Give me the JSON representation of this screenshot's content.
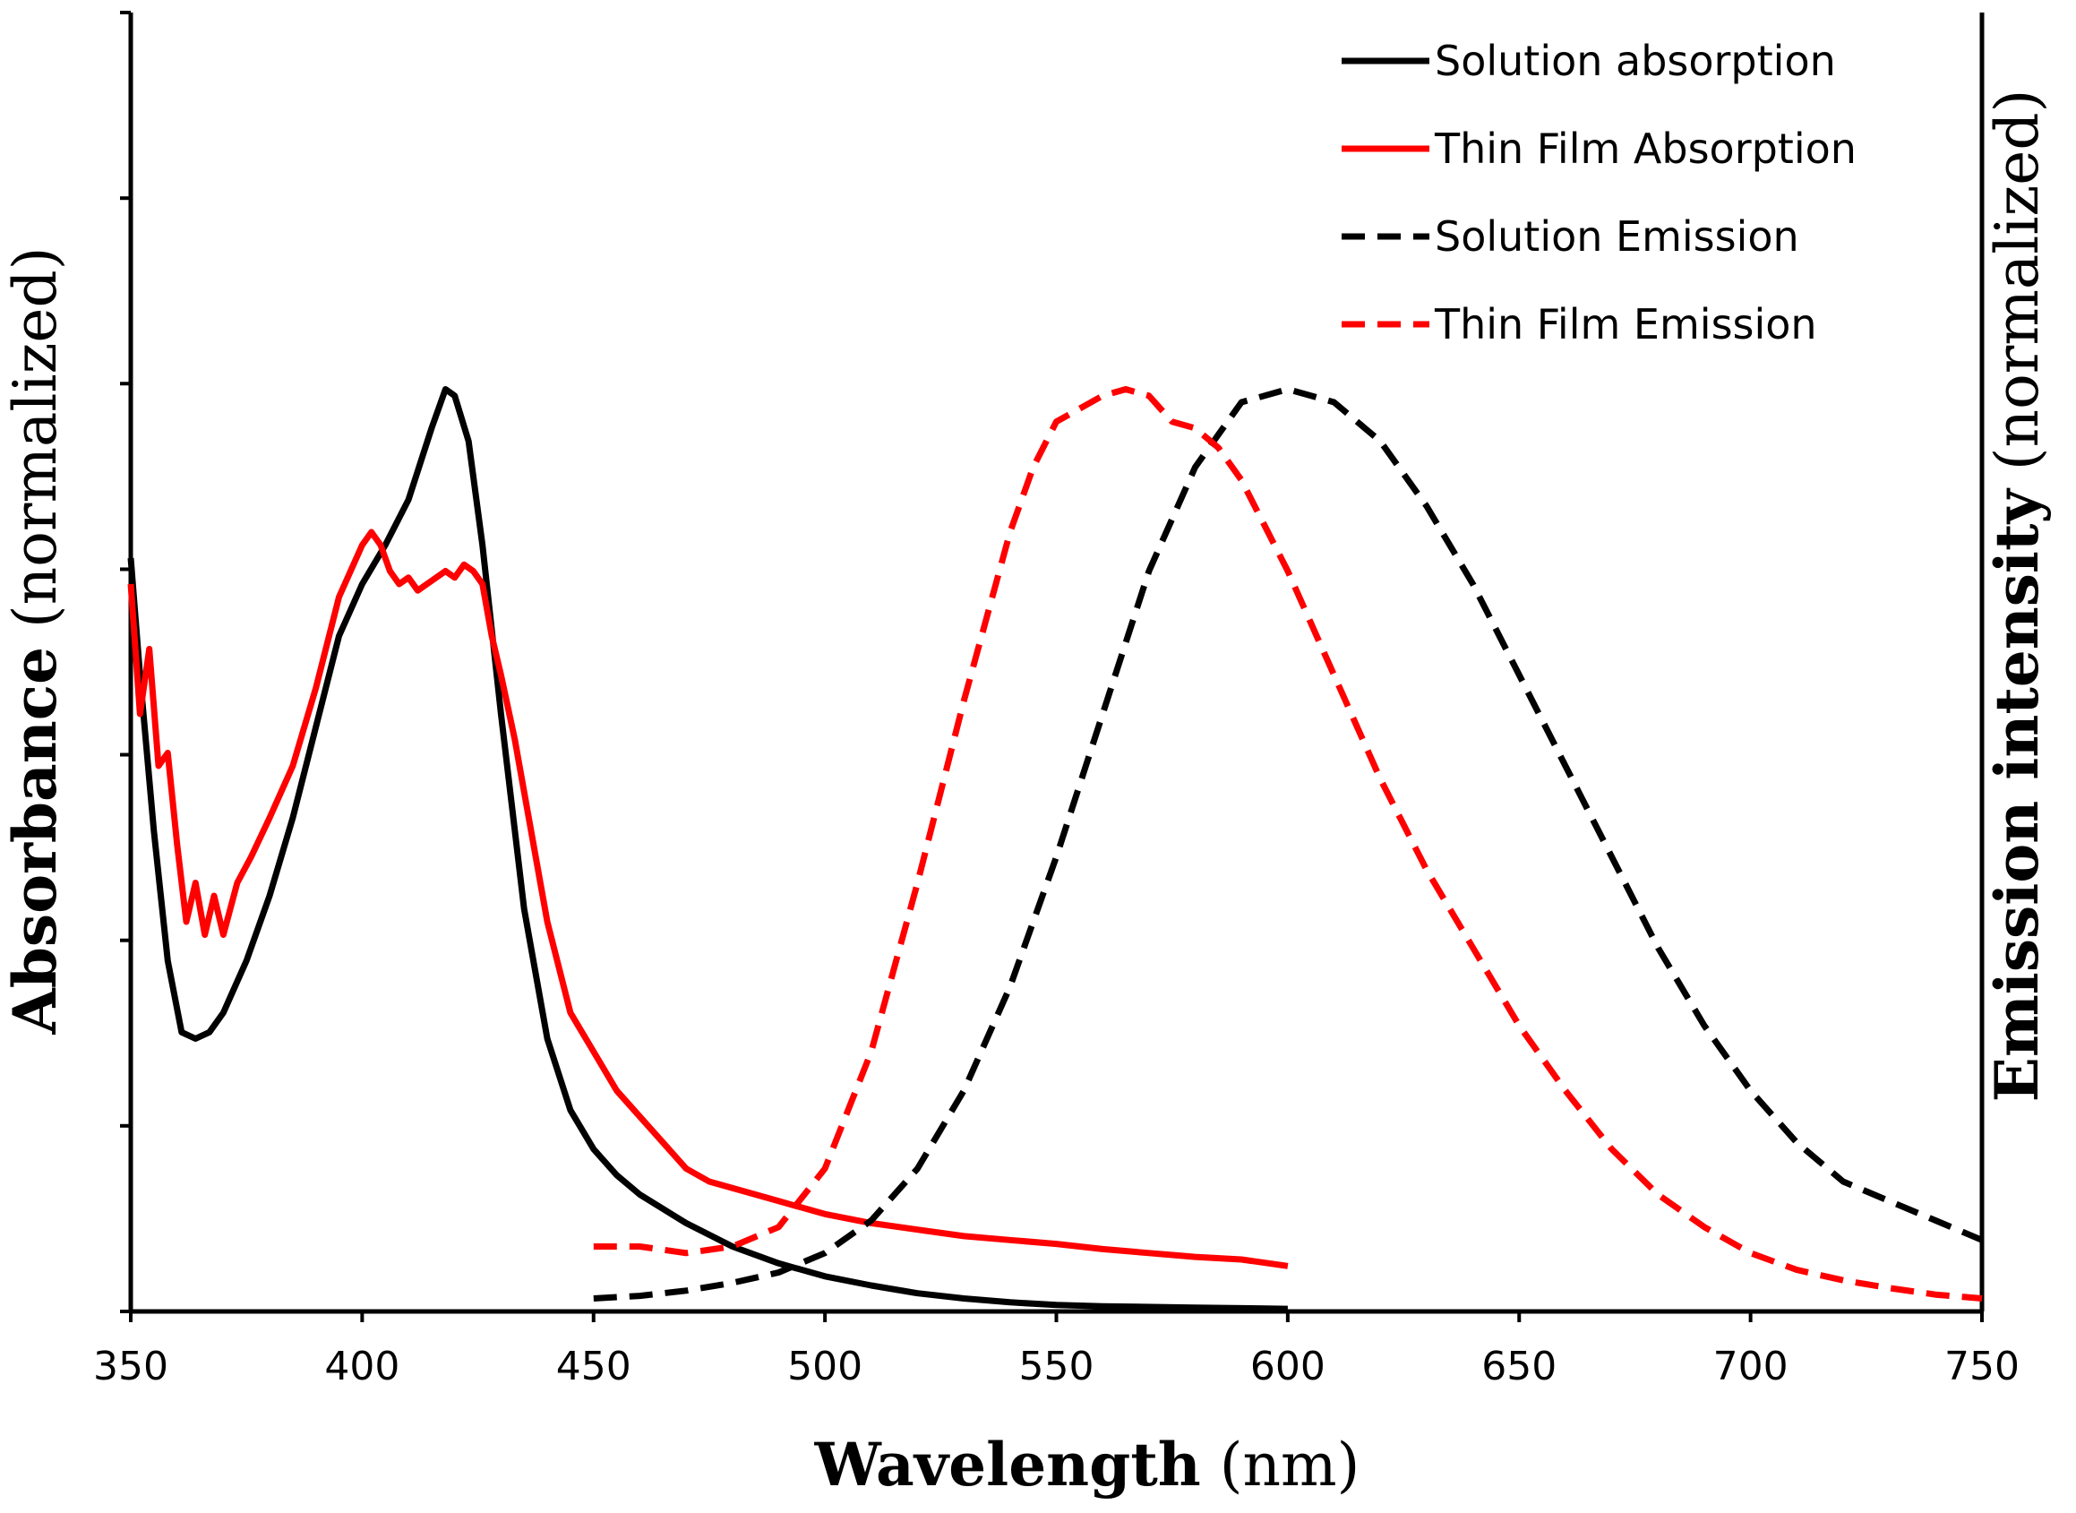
{
  "chart_data": {
    "type": "line",
    "xlabel": {
      "bold": "Wavelength",
      "normal": " (nm)"
    },
    "ylabel": {
      "bold": "Absorbance",
      "normal": " (normalized)"
    },
    "y2label": {
      "bold": "Emission intensity",
      "normal": " (normalized)"
    },
    "xlim": [
      350,
      750
    ],
    "ylim": [
      0,
      1
    ],
    "xticks": [
      350,
      400,
      450,
      500,
      550,
      600,
      650,
      700,
      750
    ],
    "xtick_labels": [
      "350",
      "400",
      "450",
      "500",
      "550",
      "600",
      "650",
      "700",
      "750"
    ],
    "yticks": [
      0,
      0.1429,
      0.2857,
      0.4286,
      0.5714,
      0.7143,
      0.8571,
      1.0
    ],
    "legend_position": "top-right",
    "series": [
      {
        "name": "Solution absorption",
        "color": "#000000",
        "dash": "solid",
        "x": [
          350,
          352,
          355,
          358,
          361,
          364,
          367,
          370,
          375,
          380,
          385,
          390,
          395,
          400,
          405,
          410,
          415,
          418,
          420,
          423,
          426,
          430,
          435,
          440,
          445,
          450,
          455,
          460,
          470,
          480,
          490,
          500,
          510,
          520,
          530,
          540,
          550,
          560,
          580,
          600
        ],
        "y": [
          0.58,
          0.49,
          0.37,
          0.27,
          0.215,
          0.21,
          0.215,
          0.23,
          0.27,
          0.32,
          0.38,
          0.45,
          0.52,
          0.56,
          0.59,
          0.625,
          0.68,
          0.71,
          0.705,
          0.67,
          0.59,
          0.46,
          0.31,
          0.21,
          0.155,
          0.125,
          0.105,
          0.09,
          0.068,
          0.05,
          0.037,
          0.027,
          0.02,
          0.014,
          0.01,
          0.007,
          0.005,
          0.004,
          0.003,
          0.002
        ]
      },
      {
        "name": "Thin Film Absorption",
        "color": "#ff0000",
        "dash": "solid",
        "x": [
          350,
          352,
          354,
          356,
          358,
          360,
          362,
          364,
          366,
          368,
          370,
          373,
          376,
          380,
          385,
          390,
          395,
          400,
          402,
          404,
          406,
          408,
          410,
          412,
          414,
          416,
          418,
          420,
          422,
          424,
          426,
          428,
          430,
          433,
          436,
          440,
          445,
          450,
          455,
          460,
          465,
          470,
          475,
          480,
          490,
          500,
          510,
          520,
          530,
          540,
          550,
          560,
          570,
          580,
          590,
          600
        ],
        "y": [
          0.56,
          0.46,
          0.51,
          0.42,
          0.43,
          0.36,
          0.3,
          0.33,
          0.29,
          0.32,
          0.29,
          0.33,
          0.35,
          0.38,
          0.42,
          0.48,
          0.55,
          0.59,
          0.6,
          0.59,
          0.57,
          0.56,
          0.565,
          0.555,
          0.56,
          0.565,
          0.57,
          0.565,
          0.575,
          0.57,
          0.56,
          0.52,
          0.49,
          0.44,
          0.38,
          0.3,
          0.23,
          0.2,
          0.17,
          0.15,
          0.13,
          0.11,
          0.1,
          0.095,
          0.085,
          0.075,
          0.068,
          0.063,
          0.058,
          0.055,
          0.052,
          0.048,
          0.045,
          0.042,
          0.04,
          0.035
        ]
      },
      {
        "name": "Solution Emission",
        "color": "#000000",
        "dash": "dashed",
        "x": [
          450,
          460,
          470,
          480,
          490,
          500,
          510,
          520,
          530,
          540,
          550,
          560,
          570,
          580,
          590,
          600,
          610,
          620,
          630,
          640,
          650,
          660,
          670,
          680,
          690,
          700,
          710,
          720,
          730,
          740,
          750
        ],
        "y": [
          0.01,
          0.012,
          0.016,
          0.022,
          0.03,
          0.045,
          0.07,
          0.11,
          0.17,
          0.25,
          0.35,
          0.46,
          0.57,
          0.65,
          0.7,
          0.71,
          0.7,
          0.67,
          0.62,
          0.56,
          0.49,
          0.42,
          0.35,
          0.28,
          0.22,
          0.17,
          0.13,
          0.1,
          0.085,
          0.07,
          0.055
        ]
      },
      {
        "name": "Thin Film Emission",
        "color": "#ff0000",
        "dash": "dashed",
        "x": [
          450,
          460,
          470,
          480,
          490,
          500,
          510,
          520,
          530,
          540,
          545,
          550,
          555,
          560,
          565,
          570,
          575,
          580,
          585,
          590,
          600,
          610,
          620,
          630,
          640,
          650,
          660,
          670,
          680,
          690,
          700,
          710,
          720,
          730,
          740,
          750
        ],
        "y": [
          0.05,
          0.05,
          0.045,
          0.05,
          0.065,
          0.11,
          0.2,
          0.33,
          0.47,
          0.6,
          0.65,
          0.685,
          0.695,
          0.705,
          0.71,
          0.705,
          0.685,
          0.68,
          0.665,
          0.64,
          0.57,
          0.49,
          0.41,
          0.34,
          0.28,
          0.22,
          0.17,
          0.125,
          0.09,
          0.065,
          0.045,
          0.032,
          0.024,
          0.018,
          0.013,
          0.01
        ]
      }
    ]
  }
}
